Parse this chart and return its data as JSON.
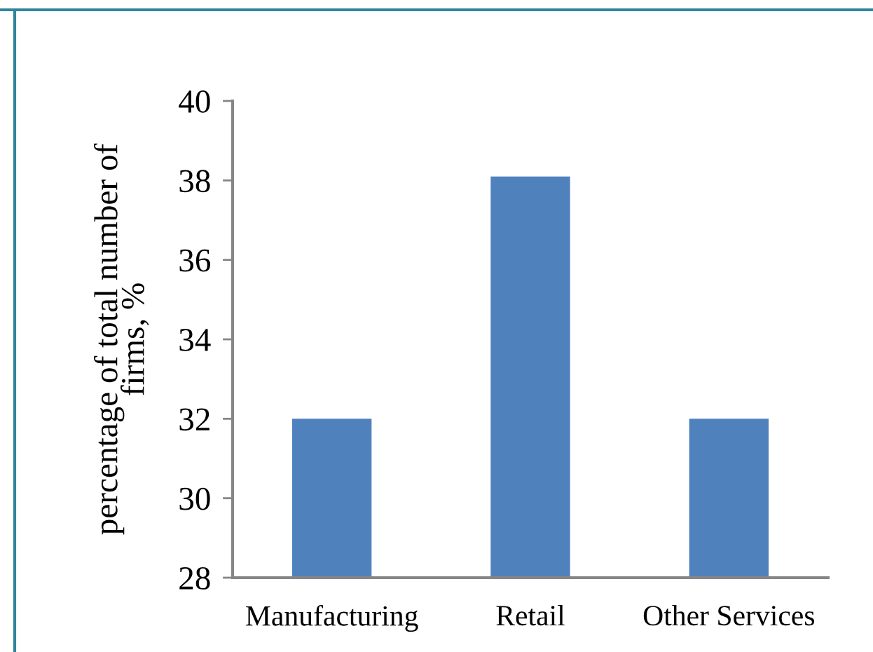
{
  "chart_data": {
    "type": "bar",
    "ylabel": "percentage of total number of firms, %",
    "categories": [
      "Manufacturing",
      "Retail",
      "Other Services"
    ],
    "values": [
      32.0,
      38.1,
      32.0
    ],
    "color": "#4f81bd",
    "ylim": [
      28,
      40
    ],
    "yticks": [
      28,
      30,
      32,
      34,
      36,
      38,
      40
    ],
    "grid": false,
    "legend": false
  }
}
